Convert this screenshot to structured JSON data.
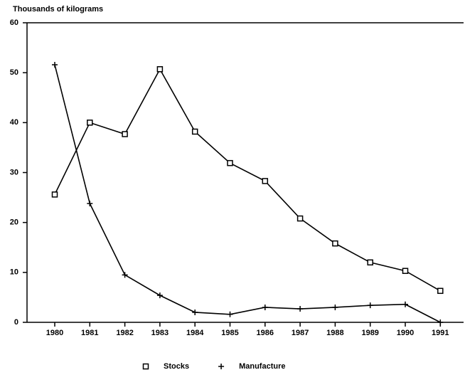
{
  "chart_data": {
    "type": "line",
    "y_axis_label": "Thousands of kilograms",
    "categories": [
      "1980",
      "1981",
      "1982",
      "1983",
      "1984",
      "1985",
      "1986",
      "1987",
      "1988",
      "1989",
      "1990",
      "1991"
    ],
    "series": [
      {
        "name": "Stocks",
        "color": "#000000",
        "marker": "square",
        "values": [
          25.6,
          40.0,
          37.7,
          50.7,
          38.2,
          31.9,
          28.3,
          20.8,
          15.8,
          12.0,
          10.3,
          6.3
        ]
      },
      {
        "name": "Manufacture",
        "color": "#000000",
        "marker": "plus",
        "values": [
          51.6,
          23.8,
          9.5,
          5.4,
          2.0,
          1.6,
          3.0,
          2.7,
          3.0,
          3.4,
          3.6,
          0
        ]
      }
    ],
    "ylim": [
      0,
      60
    ],
    "yticks": [
      0,
      10,
      20,
      30,
      40,
      50,
      60
    ],
    "grid": false,
    "legend": "bottom"
  }
}
